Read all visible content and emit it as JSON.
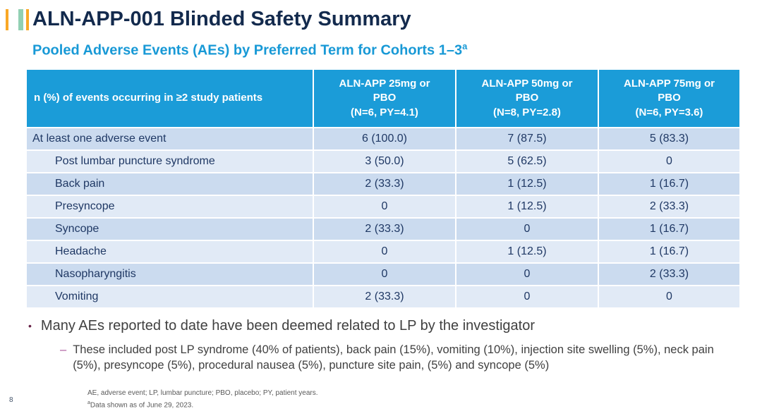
{
  "slide": {
    "title": "ALN-APP-001 Blinded Safety Summary",
    "subtitle": "Pooled Adverse Events (AEs) by Preferred Term for Cohorts 1–3",
    "subtitle_superscript": "a",
    "page_number": "8"
  },
  "table": {
    "row_label_header": "n (%) of events occurring in ≥2 study patients",
    "header": {
      "columns": [
        {
          "id": "aln-app-25mg",
          "lines": [
            "ALN-APP 25mg or",
            "PBO",
            "(N=6, PY=4.1)"
          ]
        },
        {
          "id": "aln-app-50mg",
          "lines": [
            "ALN-APP 50mg or",
            "PBO",
            "(N=8, PY=2.8)"
          ]
        },
        {
          "id": "aln-app-75mg",
          "lines": [
            "ALN-APP 75mg or",
            "PBO",
            "(N=6, PY=3.6)"
          ]
        }
      ]
    },
    "rows": [
      {
        "label": "At least one adverse event",
        "indent": false,
        "values": [
          "6 (100.0)",
          "7 (87.5)",
          "5 (83.3)"
        ]
      },
      {
        "label": "Post lumbar puncture syndrome",
        "indent": true,
        "values": [
          "3 (50.0)",
          "5 (62.5)",
          "0"
        ]
      },
      {
        "label": "Back pain",
        "indent": true,
        "values": [
          "2 (33.3)",
          "1 (12.5)",
          "1 (16.7)"
        ]
      },
      {
        "label": "Presyncope",
        "indent": true,
        "values": [
          "0",
          "1 (12.5)",
          "2 (33.3)"
        ]
      },
      {
        "label": "Syncope",
        "indent": true,
        "values": [
          "2 (33.3)",
          "0",
          "1 (16.7)"
        ]
      },
      {
        "label": "Headache",
        "indent": true,
        "values": [
          "0",
          "1 (12.5)",
          "1 (16.7)"
        ]
      },
      {
        "label": "Nasopharyngitis",
        "indent": true,
        "values": [
          "0",
          "0",
          "2 (33.3)"
        ]
      },
      {
        "label": "Vomiting",
        "indent": true,
        "values": [
          "2 (33.3)",
          "0",
          "0"
        ]
      }
    ]
  },
  "bullets": {
    "marker": "•",
    "main": "Many AEs reported to date have been deemed related to LP by the investigator",
    "sub_marker": "–",
    "sub": "These included post LP syndrome (40% of patients), back pain (15%), vomiting (10%), injection site swelling (5%), neck pain (5%), presyncope (5%), procedural nausea (5%), puncture site pain, (5%) and syncope (5%)"
  },
  "footnotes": {
    "line1": "AE, adverse event; LP, lumbar puncture; PBO, placebo; PY, patient years.",
    "line2_superscript": "a",
    "line2": "Data shown as of June 29, 2023."
  },
  "colors": {
    "header_blue": "#1B9CD8",
    "row_stripe_dark": "#CBDBEF",
    "row_stripe_light": "#E1EAF6",
    "title_navy": "#132A4D",
    "subtitle_blue": "#1899D6",
    "table_text_navy": "#1F3864",
    "bullet_text": "#404040",
    "bullet_marker": "#672146",
    "sub_bullet_dash": "#A9569B",
    "footnote_gray": "#595959",
    "logo_orange": "#F9A826",
    "logo_teal": "#92D0B3"
  }
}
